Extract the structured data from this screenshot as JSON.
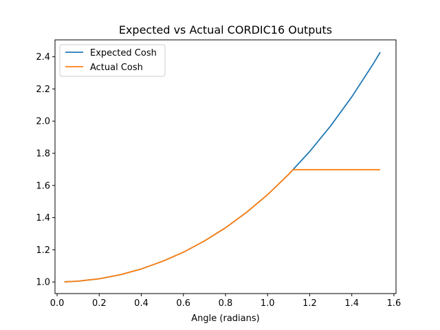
{
  "chart_data": {
    "type": "line",
    "title": "Expected vs Actual CORDIC16 Outputs",
    "xlabel": "Angle (radians)",
    "ylabel": "",
    "xlim": [
      -0.01,
      1.61
    ],
    "ylim": [
      0.928,
      2.505
    ],
    "x_ticks": [
      0.0,
      0.2,
      0.4,
      0.6,
      0.8,
      1.0,
      1.2,
      1.4,
      1.6
    ],
    "x_tick_labels": [
      "0.0",
      "0.2",
      "0.4",
      "0.6",
      "0.8",
      "1.0",
      "1.2",
      "1.4",
      "1.6"
    ],
    "y_ticks": [
      1.0,
      1.2,
      1.4,
      1.6,
      1.8,
      2.0,
      2.2,
      2.4
    ],
    "y_tick_labels": [
      "1.0",
      "1.2",
      "1.4",
      "1.6",
      "1.8",
      "2.0",
      "2.2",
      "2.4"
    ],
    "grid": false,
    "legend_position": "top-left",
    "series": [
      {
        "name": "Expected Cosh",
        "color": "#1f77b4",
        "x": [
          0.035,
          0.1,
          0.2,
          0.3,
          0.4,
          0.5,
          0.6,
          0.7,
          0.8,
          0.9,
          1.0,
          1.1,
          1.2,
          1.3,
          1.4,
          1.5,
          1.535
        ],
        "y": [
          1.001,
          1.005,
          1.02,
          1.045,
          1.081,
          1.128,
          1.185,
          1.255,
          1.337,
          1.433,
          1.543,
          1.669,
          1.811,
          1.971,
          2.151,
          2.352,
          2.428
        ]
      },
      {
        "name": "Actual Cosh",
        "color": "#ff7f0e",
        "x": [
          0.035,
          0.1,
          0.2,
          0.3,
          0.4,
          0.5,
          0.6,
          0.7,
          0.8,
          0.9,
          1.0,
          1.1,
          1.12,
          1.2,
          1.3,
          1.4,
          1.5,
          1.535
        ],
        "y": [
          1.001,
          1.005,
          1.02,
          1.045,
          1.081,
          1.128,
          1.185,
          1.255,
          1.337,
          1.433,
          1.543,
          1.669,
          1.698,
          1.698,
          1.698,
          1.698,
          1.698,
          1.698
        ]
      }
    ]
  }
}
